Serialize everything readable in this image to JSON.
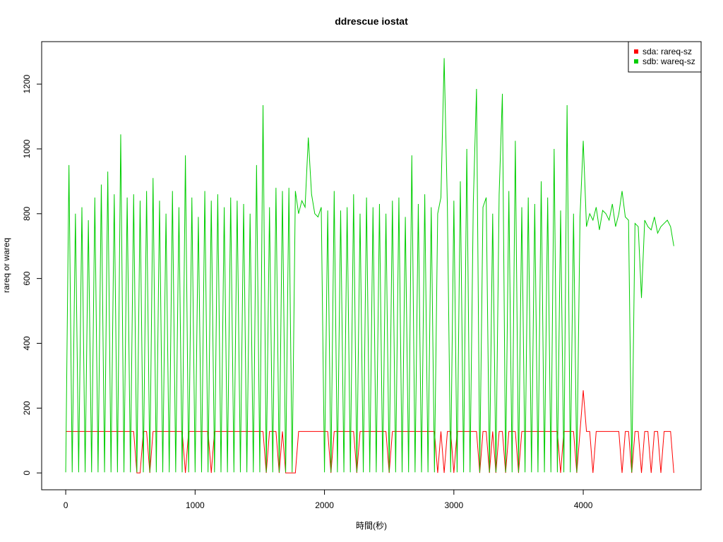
{
  "chart_data": {
    "type": "line",
    "title": "ddrescue iostat",
    "xlabel": "時間(秒)",
    "ylabel": "rareq or wareq",
    "x": [
      0,
      25,
      50,
      75,
      100,
      125,
      150,
      175,
      200,
      225,
      250,
      275,
      300,
      325,
      350,
      375,
      400,
      425,
      450,
      475,
      500,
      525,
      550,
      575,
      600,
      625,
      650,
      675,
      700,
      725,
      750,
      775,
      800,
      825,
      850,
      875,
      900,
      925,
      950,
      975,
      1000,
      1025,
      1050,
      1075,
      1100,
      1125,
      1150,
      1175,
      1200,
      1225,
      1250,
      1275,
      1300,
      1325,
      1350,
      1375,
      1400,
      1425,
      1450,
      1475,
      1500,
      1525,
      1550,
      1575,
      1600,
      1625,
      1650,
      1675,
      1700,
      1725,
      1750,
      1775,
      1800,
      1825,
      1850,
      1875,
      1900,
      1925,
      1950,
      1975,
      2000,
      2025,
      2050,
      2075,
      2100,
      2125,
      2150,
      2175,
      2200,
      2225,
      2250,
      2275,
      2300,
      2325,
      2350,
      2375,
      2400,
      2425,
      2450,
      2475,
      2500,
      2525,
      2550,
      2575,
      2600,
      2625,
      2650,
      2675,
      2700,
      2725,
      2750,
      2775,
      2800,
      2825,
      2850,
      2875,
      2900,
      2925,
      2950,
      2975,
      3000,
      3025,
      3050,
      3075,
      3100,
      3125,
      3150,
      3175,
      3200,
      3225,
      3250,
      3275,
      3300,
      3325,
      3350,
      3375,
      3400,
      3425,
      3450,
      3475,
      3500,
      3525,
      3550,
      3575,
      3600,
      3625,
      3650,
      3675,
      3700,
      3725,
      3750,
      3775,
      3800,
      3825,
      3850,
      3875,
      3900,
      3925,
      3950,
      3975,
      4000,
      4025,
      4050,
      4075,
      4100,
      4125,
      4150,
      4175,
      4200,
      4225,
      4250,
      4275,
      4300,
      4325,
      4350,
      4375,
      4400,
      4425,
      4450,
      4475,
      4500,
      4525,
      4550,
      4575,
      4600,
      4625,
      4650,
      4675,
      4700
    ],
    "series": [
      {
        "name": "sda: rareq-sz",
        "color": "#ff0000",
        "values": [
          128,
          128,
          128,
          128,
          128,
          128,
          128,
          128,
          128,
          128,
          128,
          128,
          128,
          128,
          128,
          128,
          128,
          128,
          128,
          128,
          128,
          128,
          0,
          0,
          128,
          128,
          0,
          128,
          128,
          128,
          128,
          128,
          128,
          128,
          128,
          128,
          128,
          0,
          128,
          128,
          128,
          128,
          128,
          128,
          128,
          0,
          128,
          128,
          128,
          128,
          128,
          128,
          128,
          128,
          128,
          128,
          128,
          128,
          128,
          128,
          128,
          128,
          0,
          128,
          128,
          128,
          0,
          128,
          0,
          0,
          0,
          0,
          128,
          128,
          128,
          128,
          128,
          128,
          128,
          128,
          128,
          128,
          0,
          128,
          128,
          128,
          128,
          128,
          128,
          128,
          0,
          128,
          128,
          128,
          128,
          128,
          128,
          128,
          128,
          128,
          0,
          128,
          128,
          128,
          128,
          128,
          128,
          128,
          128,
          128,
          128,
          128,
          128,
          128,
          128,
          0,
          128,
          0,
          128,
          128,
          0,
          128,
          128,
          128,
          128,
          128,
          128,
          128,
          0,
          128,
          128,
          0,
          128,
          0,
          128,
          128,
          0,
          128,
          128,
          128,
          0,
          128,
          128,
          128,
          128,
          128,
          128,
          128,
          128,
          128,
          128,
          128,
          128,
          0,
          128,
          128,
          128,
          128,
          0,
          128,
          255,
          128,
          128,
          0,
          128,
          128,
          128,
          128,
          128,
          128,
          128,
          128,
          0,
          128,
          128,
          0,
          128,
          128,
          0,
          128,
          128,
          0,
          128,
          128,
          0,
          128,
          128,
          128,
          0
        ]
      },
      {
        "name": "sdb: wareq-sz",
        "color": "#00cd00",
        "values": [
          2,
          950,
          2,
          800,
          2,
          820,
          2,
          780,
          2,
          850,
          2,
          890,
          2,
          930,
          2,
          860,
          2,
          1045,
          2,
          850,
          2,
          860,
          2,
          840,
          2,
          870,
          2,
          910,
          2,
          840,
          2,
          800,
          2,
          870,
          2,
          820,
          2,
          980,
          2,
          850,
          2,
          790,
          2,
          870,
          2,
          840,
          2,
          860,
          2,
          820,
          2,
          850,
          2,
          840,
          2,
          830,
          2,
          800,
          2,
          950,
          2,
          1135,
          2,
          820,
          2,
          880,
          2,
          870,
          2,
          880,
          2,
          870,
          800,
          840,
          820,
          1035,
          860,
          800,
          790,
          820,
          2,
          810,
          2,
          870,
          2,
          810,
          2,
          820,
          2,
          860,
          2,
          800,
          2,
          850,
          2,
          820,
          2,
          830,
          2,
          800,
          2,
          840,
          2,
          850,
          2,
          790,
          2,
          980,
          2,
          830,
          2,
          860,
          2,
          820,
          2,
          800,
          850,
          1280,
          820,
          2,
          840,
          2,
          900,
          2,
          1000,
          2,
          830,
          1185,
          2,
          820,
          850,
          2,
          800,
          2,
          860,
          1170,
          2,
          870,
          2,
          1025,
          2,
          820,
          2,
          850,
          2,
          830,
          2,
          900,
          2,
          850,
          2,
          1000,
          2,
          810,
          2,
          1135,
          2,
          800,
          2,
          790,
          1025,
          760,
          800,
          780,
          820,
          750,
          810,
          800,
          780,
          830,
          760,
          800,
          870,
          790,
          780,
          2,
          770,
          760,
          540,
          780,
          760,
          750,
          790,
          740,
          760,
          770,
          780,
          760,
          700
        ]
      }
    ],
    "xlim": [
      -186,
      4911
    ],
    "ylim": [
      -52,
      1331
    ],
    "xticks": [
      0,
      1000,
      2000,
      3000,
      4000
    ],
    "yticks": [
      0,
      200,
      400,
      600,
      800,
      1000,
      1200
    ],
    "legend": "top-right"
  }
}
